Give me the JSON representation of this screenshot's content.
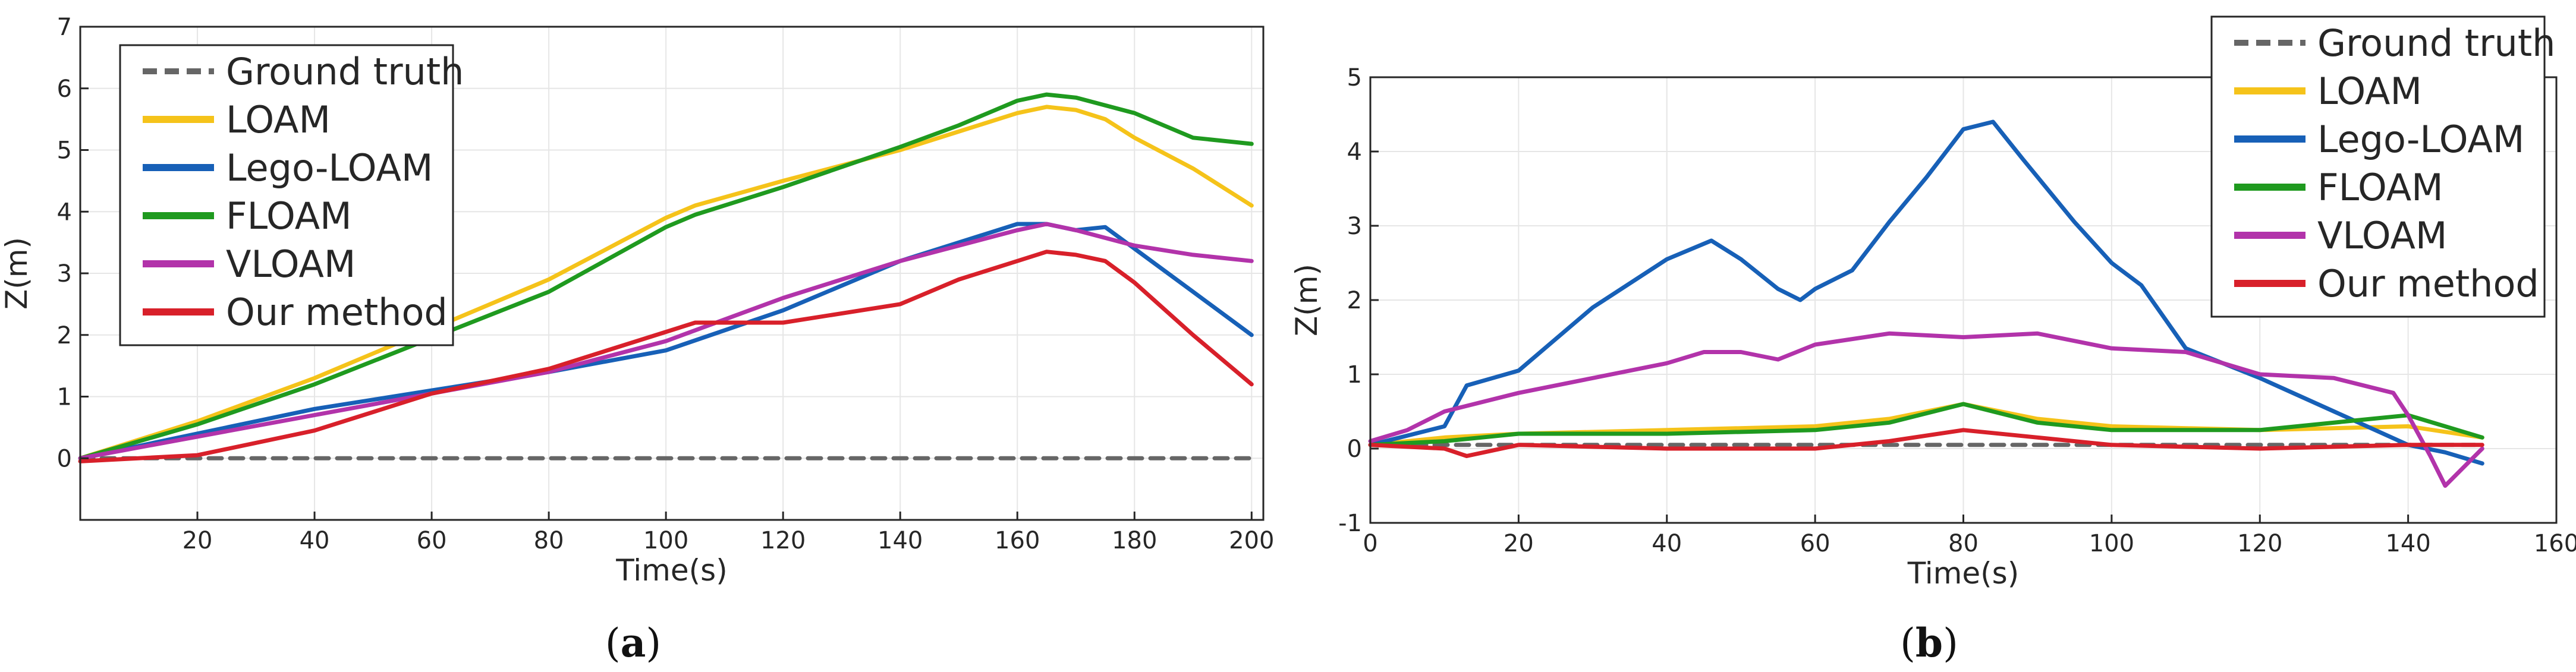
{
  "colors": {
    "ground_truth": "#666666",
    "loam": "#f5c31a",
    "lego_loam": "#1760b7",
    "floam": "#1f9a1f",
    "vloam": "#b233aa",
    "ours": "#d8202a"
  },
  "captions": [
    {
      "open": "(",
      "letter": "a",
      "close": ")"
    },
    {
      "open": "(",
      "letter": "b",
      "close": ")"
    }
  ],
  "chart_data": [
    {
      "type": "line",
      "title": "",
      "xlabel": "Time(s)",
      "ylabel": "Z(m)",
      "xlim": [
        0,
        202
      ],
      "ylim": [
        -1,
        7
      ],
      "xticks": [
        20,
        40,
        60,
        80,
        100,
        120,
        140,
        160,
        180,
        200
      ],
      "yticks": [
        0,
        1,
        2,
        3,
        4,
        5,
        6,
        7
      ],
      "grid": true,
      "legend_position": "top-left",
      "series": [
        {
          "name": "Ground truth",
          "style": "dashed",
          "color_key": "ground_truth",
          "x": [
            0,
            200
          ],
          "y": [
            0,
            0
          ]
        },
        {
          "name": "LOAM",
          "color_key": "loam",
          "x": [
            0,
            20,
            40,
            60,
            80,
            100,
            105,
            120,
            140,
            150,
            160,
            165,
            170,
            175,
            180,
            190,
            200
          ],
          "y": [
            0,
            0.6,
            1.3,
            2.1,
            2.9,
            3.9,
            4.1,
            4.5,
            5.0,
            5.3,
            5.6,
            5.7,
            5.65,
            5.5,
            5.2,
            4.7,
            4.1
          ]
        },
        {
          "name": "Lego-LOAM",
          "color_key": "lego_loam",
          "x": [
            0,
            20,
            40,
            60,
            80,
            100,
            120,
            140,
            160,
            165,
            170,
            175,
            180,
            190,
            200
          ],
          "y": [
            0,
            0.4,
            0.8,
            1.1,
            1.4,
            1.75,
            2.4,
            3.2,
            3.8,
            3.8,
            3.7,
            3.75,
            3.4,
            2.7,
            2.0
          ]
        },
        {
          "name": "FLOAM",
          "color_key": "floam",
          "x": [
            0,
            20,
            40,
            60,
            80,
            100,
            105,
            120,
            140,
            150,
            160,
            165,
            170,
            180,
            190,
            200
          ],
          "y": [
            0,
            0.55,
            1.2,
            1.95,
            2.7,
            3.75,
            3.95,
            4.4,
            5.05,
            5.4,
            5.8,
            5.9,
            5.85,
            5.6,
            5.2,
            5.1
          ]
        },
        {
          "name": "VLOAM",
          "color_key": "vloam",
          "x": [
            0,
            20,
            40,
            60,
            80,
            100,
            120,
            140,
            160,
            165,
            170,
            180,
            190,
            200
          ],
          "y": [
            0,
            0.35,
            0.7,
            1.05,
            1.4,
            1.9,
            2.6,
            3.2,
            3.7,
            3.8,
            3.7,
            3.45,
            3.3,
            3.2
          ]
        },
        {
          "name": "Our method",
          "color_key": "ours",
          "x": [
            0,
            20,
            40,
            60,
            80,
            100,
            105,
            120,
            140,
            150,
            160,
            165,
            170,
            175,
            180,
            190,
            200
          ],
          "y": [
            -0.05,
            0.05,
            0.45,
            1.05,
            1.45,
            2.05,
            2.2,
            2.2,
            2.5,
            2.9,
            3.2,
            3.35,
            3.3,
            3.2,
            2.85,
            2.0,
            1.2
          ]
        }
      ]
    },
    {
      "type": "line",
      "title": "",
      "xlabel": "Time(s)",
      "ylabel": "Z(m)",
      "xlim": [
        0,
        160
      ],
      "ylim": [
        -1,
        5
      ],
      "xticks": [
        0,
        20,
        40,
        60,
        80,
        100,
        120,
        140,
        160
      ],
      "yticks": [
        -1,
        0,
        1,
        2,
        3,
        4,
        5
      ],
      "grid": true,
      "legend_position": "top-right",
      "series": [
        {
          "name": "Ground truth",
          "style": "dashed",
          "color_key": "ground_truth",
          "x": [
            0,
            150
          ],
          "y": [
            0.05,
            0.05
          ]
        },
        {
          "name": "LOAM",
          "color_key": "loam",
          "x": [
            0,
            10,
            20,
            40,
            60,
            70,
            80,
            90,
            100,
            120,
            140,
            150
          ],
          "y": [
            0.05,
            0.15,
            0.2,
            0.25,
            0.3,
            0.4,
            0.6,
            0.4,
            0.3,
            0.25,
            0.3,
            0.15
          ]
        },
        {
          "name": "Lego-LOAM",
          "color_key": "lego_loam",
          "x": [
            0,
            10,
            13,
            20,
            30,
            40,
            46,
            50,
            55,
            58,
            60,
            65,
            70,
            75,
            80,
            84,
            88,
            95,
            100,
            104,
            110,
            120,
            130,
            140,
            145,
            150
          ],
          "y": [
            0.05,
            0.3,
            0.85,
            1.05,
            1.9,
            2.55,
            2.8,
            2.55,
            2.15,
            2.0,
            2.15,
            2.4,
            3.05,
            3.65,
            4.3,
            4.4,
            3.9,
            3.05,
            2.5,
            2.2,
            1.35,
            0.95,
            0.5,
            0.05,
            -0.05,
            -0.2
          ]
        },
        {
          "name": "FLOAM",
          "color_key": "floam",
          "x": [
            0,
            10,
            20,
            40,
            60,
            70,
            80,
            90,
            100,
            120,
            135,
            140,
            150
          ],
          "y": [
            0.05,
            0.1,
            0.2,
            0.2,
            0.25,
            0.35,
            0.6,
            0.35,
            0.25,
            0.25,
            0.4,
            0.45,
            0.15
          ]
        },
        {
          "name": "VLOAM",
          "color_key": "vloam",
          "x": [
            0,
            5,
            10,
            20,
            30,
            40,
            45,
            50,
            55,
            60,
            70,
            80,
            90,
            100,
            110,
            120,
            130,
            138,
            140,
            143,
            145,
            150
          ],
          "y": [
            0.1,
            0.25,
            0.5,
            0.75,
            0.95,
            1.15,
            1.3,
            1.3,
            1.2,
            1.4,
            1.55,
            1.5,
            1.55,
            1.35,
            1.3,
            1.0,
            0.95,
            0.75,
            0.45,
            -0.1,
            -0.5,
            0.0
          ]
        },
        {
          "name": "Our method",
          "color_key": "ours",
          "x": [
            0,
            10,
            13,
            20,
            40,
            60,
            70,
            80,
            90,
            100,
            120,
            140,
            150
          ],
          "y": [
            0.05,
            0.0,
            -0.1,
            0.05,
            0.0,
            0.0,
            0.1,
            0.25,
            0.15,
            0.05,
            0.0,
            0.05,
            0.05
          ]
        }
      ]
    }
  ]
}
